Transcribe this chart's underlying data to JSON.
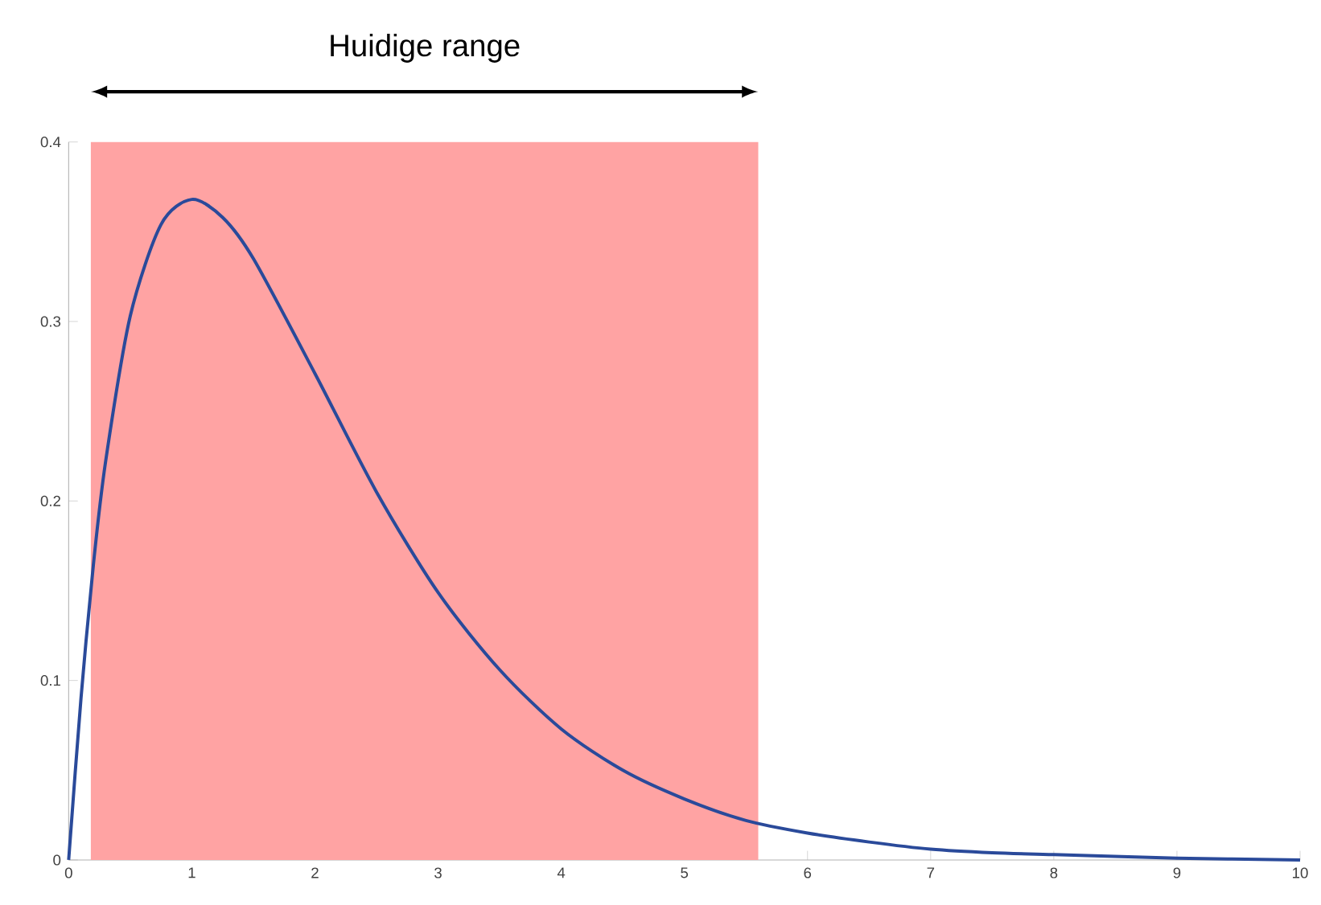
{
  "chart_data": {
    "type": "line",
    "x": [
      0,
      0.1,
      0.2,
      0.3,
      0.5,
      0.75,
      1,
      1.25,
      1.5,
      2,
      2.5,
      3,
      3.5,
      4,
      4.5,
      5,
      5.5,
      6,
      6.5,
      7,
      7.5,
      8,
      9,
      10
    ],
    "series": [
      {
        "color": "#2a4a9a",
        "values": [
          0,
          0.09,
          0.164,
          0.222,
          0.303,
          0.354,
          0.368,
          0.358,
          0.335,
          0.271,
          0.205,
          0.149,
          0.106,
          0.073,
          0.05,
          0.034,
          0.022,
          0.015,
          0.01,
          0.006,
          0.004,
          0.003,
          0.001,
          0
        ]
      }
    ],
    "xlim": [
      0,
      10
    ],
    "xticks": [
      0,
      1,
      2,
      3,
      4,
      5,
      6,
      7,
      8,
      9,
      10
    ],
    "ylim": [
      0,
      0.4
    ],
    "yticks": [
      0,
      0.1,
      0.2,
      0.3,
      0.4
    ],
    "grid": false,
    "marker": "none",
    "line_style": "solid",
    "bands": [
      {
        "axis": "x",
        "from": 0.18,
        "to": 5.6,
        "label": "Huidige range",
        "color": "#ffa3a3"
      }
    ]
  }
}
